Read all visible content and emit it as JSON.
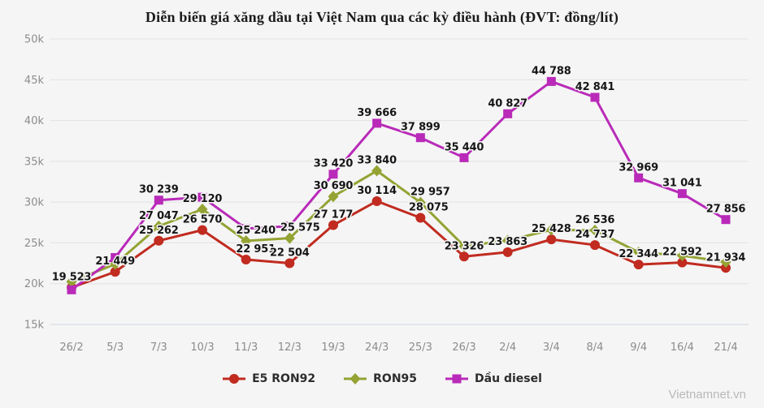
{
  "title": "Diễn biến giá xăng dầu tại Việt Nam qua các kỳ điều hành (ĐVT: đồng/lít)",
  "watermark": "Vietnamnet.vn",
  "chart_data": {
    "type": "line",
    "categories": [
      "26/2",
      "5/3",
      "7/3",
      "10/3",
      "11/3",
      "12/3",
      "19/3",
      "24/3",
      "25/3",
      "26/3",
      "2/4",
      "3/4",
      "8/4",
      "9/4",
      "16/4",
      "21/4"
    ],
    "series": [
      {
        "name": "E5 RON92",
        "marker": "circle",
        "color": "#c12b20",
        "values": [
          19523,
          21449,
          25262,
          26570,
          22951,
          22504,
          27177,
          30114,
          28075,
          23326,
          23863,
          25428,
          24737,
          22344,
          22592,
          21934
        ],
        "labels": [
          "19 523",
          "21 449",
          "25 262",
          "26 570",
          "22 951",
          "22 504",
          "27 177",
          "30 114",
          "28 075",
          "23 326",
          "23 863",
          "25 428",
          "24 737",
          "22 344",
          "22 592",
          "21 934"
        ]
      },
      {
        "name": "RON95",
        "marker": "diamond",
        "color": "#94a333",
        "values": [
          20250,
          22400,
          27047,
          29120,
          25240,
          25575,
          30690,
          33840,
          29957,
          24600,
          25300,
          26600,
          26536,
          23850,
          23450,
          22650
        ],
        "labels": [
          null,
          null,
          "27 047",
          "29 120",
          "25 240",
          "25 575",
          "30 690",
          "33 840",
          "29 957",
          null,
          null,
          null,
          "26 536",
          null,
          null,
          null
        ]
      },
      {
        "name": "Dầu diesel",
        "marker": "square",
        "color": "#b92ab9",
        "values": [
          19250,
          23200,
          30239,
          30600,
          26750,
          27050,
          33420,
          39666,
          37899,
          35440,
          40827,
          44788,
          42841,
          32969,
          31041,
          27856
        ],
        "labels": [
          null,
          null,
          "30 239",
          null,
          null,
          null,
          "33 420",
          "39 666",
          "37 899",
          "35 440",
          "40 827",
          "44 788",
          "42 841",
          "32 969",
          "31 041",
          "27 856"
        ]
      }
    ],
    "ylim": [
      15000,
      50000
    ],
    "ytick_step": 5000,
    "ytick_labels": [
      "15k",
      "20k",
      "25k",
      "30k",
      "35k",
      "40k",
      "45k",
      "50k"
    ],
    "grid": "horizontal",
    "legend_position": "bottom",
    "label_dx": {
      "0": {
        "4": 12,
        "8": 10
      },
      "1": {
        "4": 12,
        "5": 13,
        "8": 12
      }
    }
  }
}
